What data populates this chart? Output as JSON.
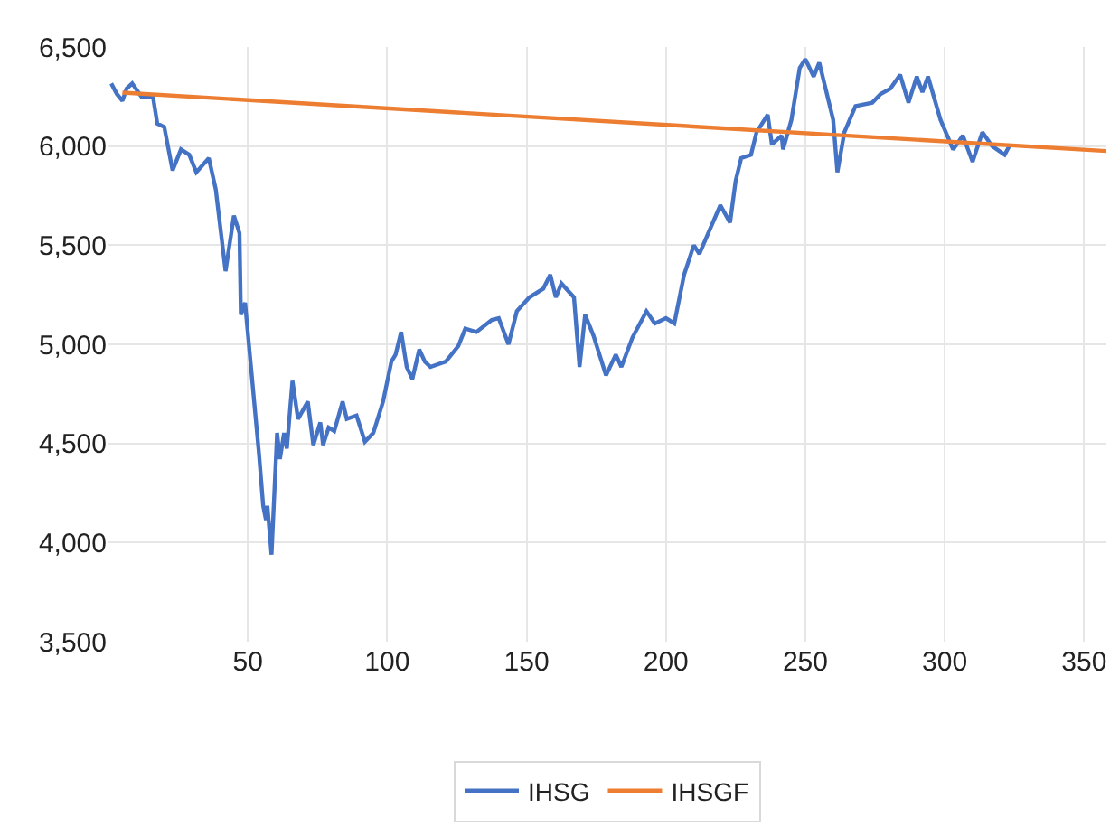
{
  "chart_data": {
    "type": "line",
    "xlim": [
      0,
      358
    ],
    "xticks": [
      50,
      100,
      150,
      200,
      250,
      300,
      350
    ],
    "ylim": [
      3500,
      6500
    ],
    "yticks": [
      {
        "value": 3500,
        "label": "3,500"
      },
      {
        "value": 4000,
        "label": "4,000"
      },
      {
        "value": 4500,
        "label": "4,500"
      },
      {
        "value": 5000,
        "label": "5,000"
      },
      {
        "value": 5500,
        "label": "5,500"
      },
      {
        "value": 6000,
        "label": "6,000"
      },
      {
        "value": 6500,
        "label": "6,500"
      }
    ],
    "grid": true,
    "legend": "bottom",
    "marker": "none",
    "line_style": "solid",
    "series": [
      {
        "name": "IHSG",
        "color": "#4472c4",
        "x": [
          1,
          3,
          5,
          6.5,
          8.5,
          12,
          16,
          17.5,
          20,
          23,
          26,
          29,
          31.5,
          36,
          38.5,
          42,
          45,
          47,
          47.5,
          49,
          51,
          54,
          55.5,
          56.5,
          57,
          58.5,
          60.5,
          61.5,
          63,
          64,
          66,
          68,
          71.5,
          73.5,
          76,
          77,
          79,
          81,
          84,
          85.5,
          89,
          92,
          95,
          98.5,
          101.5,
          103,
          105,
          107,
          109,
          111.5,
          113.5,
          115.5,
          121,
          125.5,
          128,
          132,
          137.5,
          140,
          143.5,
          146.5,
          151,
          156,
          158.5,
          160.5,
          162.5,
          167,
          169,
          171,
          174,
          178.5,
          182,
          184,
          188,
          193,
          196,
          200,
          203,
          206.5,
          210,
          212,
          216,
          219.5,
          223,
          225,
          227,
          230.5,
          232.5,
          236.5,
          238,
          241.5,
          242,
          245,
          248,
          250,
          253,
          255,
          260,
          261.5,
          264,
          268,
          274,
          277,
          280.5,
          284,
          287,
          290,
          292,
          294,
          298.5,
          303,
          306.5,
          310,
          313.5,
          317,
          321.5,
          323.5
        ],
        "values": [
          6316,
          6263,
          6228,
          6290,
          6316,
          6246,
          6246,
          6114,
          6097,
          5877,
          5983,
          5956,
          5868,
          5939,
          5781,
          5369,
          5649,
          5561,
          5149,
          5210,
          4904,
          4448,
          4185,
          4114,
          4185,
          3939,
          4553,
          4421,
          4553,
          4474,
          4816,
          4623,
          4711,
          4492,
          4606,
          4492,
          4580,
          4562,
          4711,
          4623,
          4641,
          4509,
          4553,
          4711,
          4913,
          4948,
          5062,
          4886,
          4825,
          4974,
          4913,
          4886,
          4913,
          4991,
          5079,
          5062,
          5123,
          5132,
          5000,
          5167,
          5237,
          5281,
          5351,
          5237,
          5307,
          5237,
          4886,
          5149,
          5044,
          4843,
          4948,
          4886,
          5035,
          5167,
          5105,
          5132,
          5105,
          5351,
          5500,
          5456,
          5588,
          5702,
          5614,
          5825,
          5939,
          5956,
          6070,
          6158,
          6009,
          6053,
          5983,
          6132,
          6395,
          6439,
          6351,
          6421,
          6132,
          5868,
          6070,
          6202,
          6219,
          6263,
          6290,
          6360,
          6219,
          6351,
          6272,
          6351,
          6132,
          5983,
          6053,
          5921,
          6070,
          6000,
          5956,
          6009
        ]
      },
      {
        "name": "IHSGF",
        "color": "#ed7d31",
        "x": [
          5,
          358
        ],
        "values": [
          6270,
          5975
        ]
      }
    ]
  }
}
